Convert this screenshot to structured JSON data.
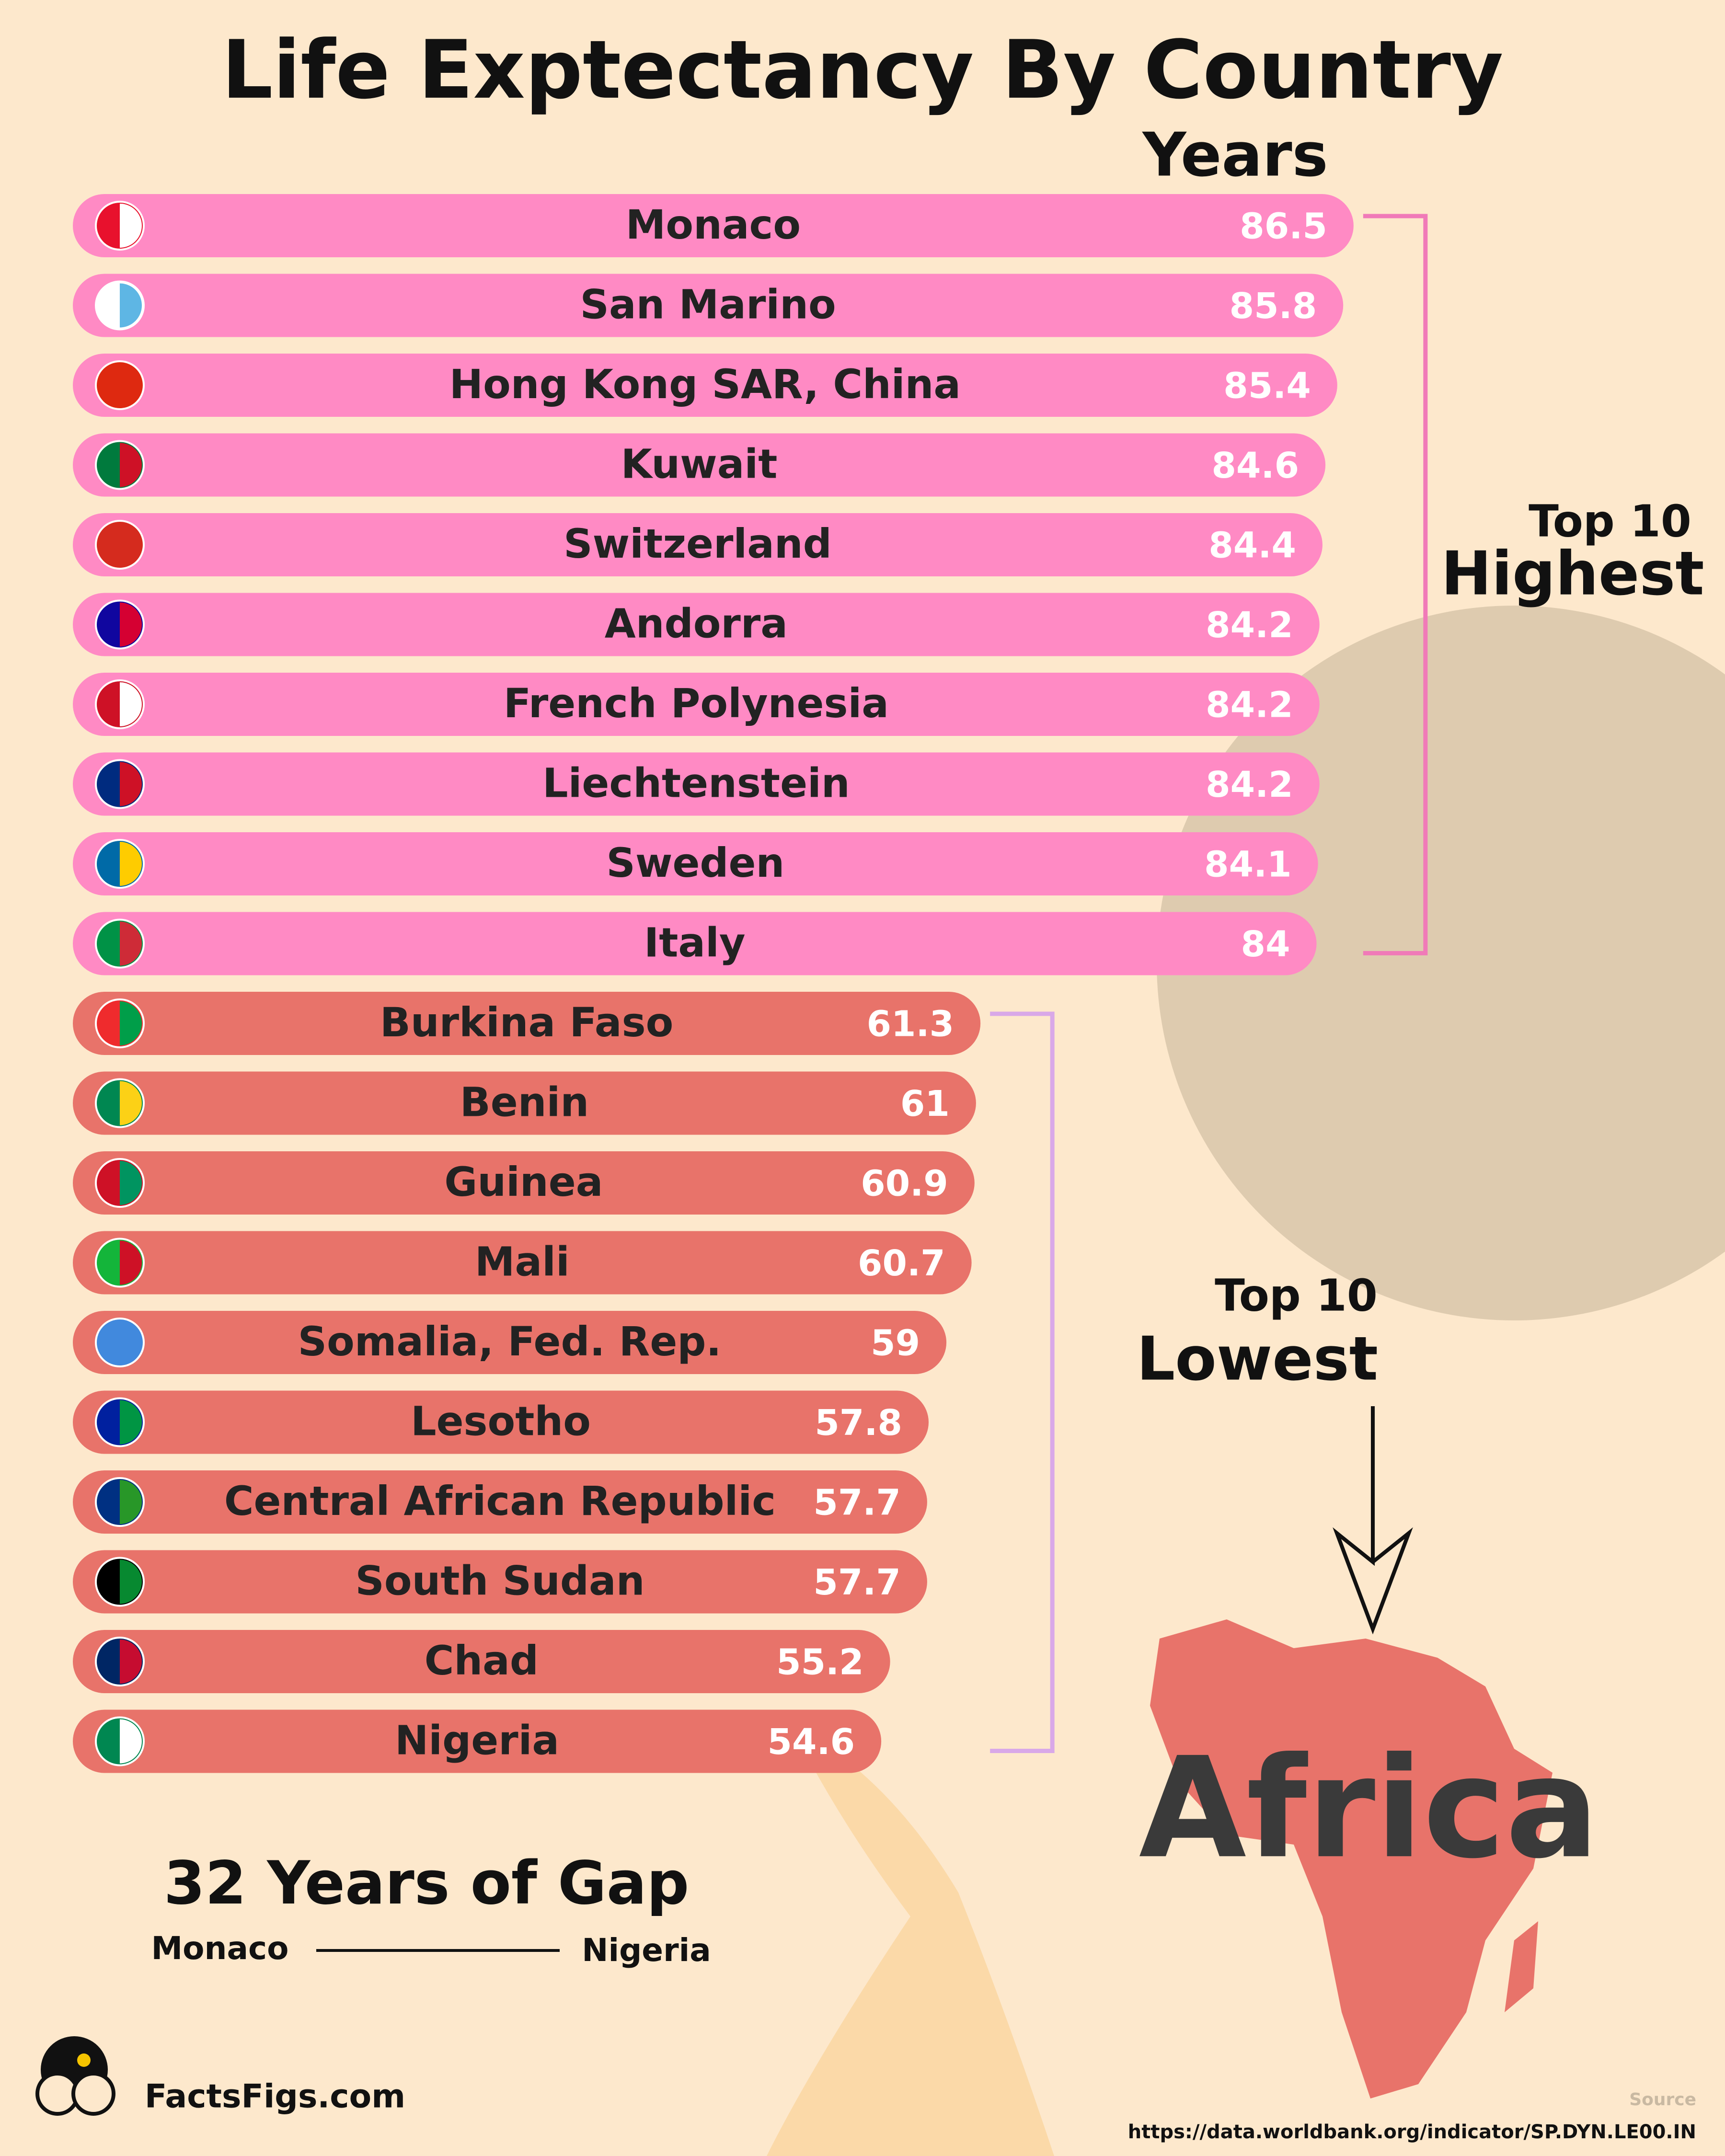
{
  "chart_data": {
    "type": "bar",
    "title": "Life Exptectancy By Country",
    "axis_label": "Years",
    "series": [
      {
        "name_top": "Top 10",
        "name": "Highest",
        "color": "#ff8ac4",
        "bracket_color": "#f07ab8",
        "categories": [
          "Monaco",
          "San Marino",
          "Hong Kong SAR, China",
          "Kuwait",
          "Switzerland",
          "Andorra",
          "French Polynesia",
          "Liechtenstein",
          "Sweden",
          "Italy"
        ],
        "values": [
          86.5,
          85.8,
          85.4,
          84.6,
          84.4,
          84.2,
          84.2,
          84.2,
          84.1,
          84
        ],
        "flag_colors": [
          [
            "#e8112d",
            "#ffffff"
          ],
          [
            "#ffffff",
            "#5eb6e4"
          ],
          [
            "#de2910",
            "#de2910"
          ],
          [
            "#007a3d",
            "#ce1126"
          ],
          [
            "#d52b1e",
            "#d52b1e"
          ],
          [
            "#10069f",
            "#d50032"
          ],
          [
            "#ce1126",
            "#ffffff"
          ],
          [
            "#002b7f",
            "#ce1126"
          ],
          [
            "#006aa7",
            "#fecc00"
          ],
          [
            "#009246",
            "#ce2b37"
          ]
        ]
      },
      {
        "name_top": "Top 10",
        "name": "Lowest",
        "color": "#e8736a",
        "bracket_color": "#d9a8e8",
        "categories": [
          "Burkina Faso",
          "Benin",
          "Guinea",
          "Mali",
          "Somalia, Fed. Rep.",
          "Lesotho",
          "Central African Republic",
          "South Sudan",
          "Chad",
          "Nigeria"
        ],
        "values": [
          61.3,
          61,
          60.9,
          60.7,
          59,
          57.8,
          57.7,
          57.7,
          55.2,
          54.6
        ],
        "flag_colors": [
          [
            "#ef2b2d",
            "#009e49"
          ],
          [
            "#008751",
            "#fcd116"
          ],
          [
            "#ce1126",
            "#009460"
          ],
          [
            "#14b53a",
            "#ce1126"
          ],
          [
            "#4189dd",
            "#4189dd"
          ],
          [
            "#00209f",
            "#009543"
          ],
          [
            "#003082",
            "#289728"
          ],
          [
            "#000000",
            "#078930"
          ],
          [
            "#002664",
            "#c60c30"
          ],
          [
            "#008751",
            "#ffffff"
          ]
        ]
      }
    ],
    "annotations": {
      "region": "Africa",
      "gap": "32 Years of Gap",
      "gap_from": "Monaco",
      "gap_to": "Nigeria"
    },
    "footer": {
      "brand": "FactsFigs.com",
      "source_label": "Source",
      "source_url": "https://data.worldbank.org/indicator/SP.DYN.LE00.IN"
    }
  }
}
